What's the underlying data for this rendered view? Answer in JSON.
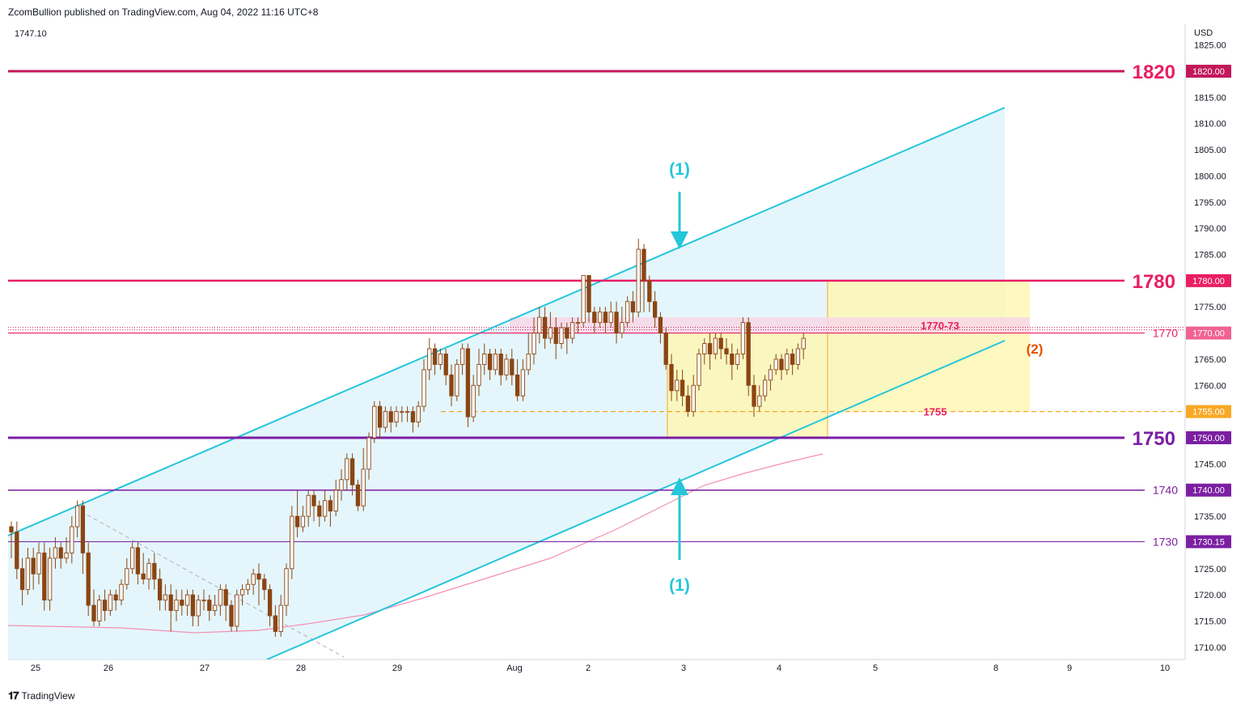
{
  "header": {
    "text": "ZcomBullion published on TradingView.com, Aug 04, 2022 11:16 UTC+8"
  },
  "footer": {
    "brand": "TradingView"
  },
  "colors": {
    "magenta": "#c2185b",
    "pink": "#e91e63",
    "purple": "#7b1fa2",
    "cyan": "#26c6da",
    "orange": "#e65100",
    "candle": "#8b4513",
    "channel_fill": "#dff4fb",
    "zone_yellow": "#fff6b0",
    "zone_pink": "#f8d7e6"
  },
  "chart_data": {
    "type": "candlestick",
    "symbol_value_label": "1747.10",
    "currency": "USD",
    "y_ticks": [
      1710,
      1715,
      1720,
      1725,
      1730,
      1735,
      1740,
      1745,
      1750,
      1755,
      1760,
      1765,
      1770,
      1775,
      1780,
      1785,
      1790,
      1795,
      1800,
      1805,
      1810,
      1815,
      1820,
      1825
    ],
    "y_tick_labels": [
      "1710.00",
      "1715.00",
      "1720.00",
      "1725.00",
      "1730.00",
      "1735.00",
      "1740.00",
      "1745.00",
      "1750.00",
      "1755.00",
      "1760.00",
      "1765.00",
      "1770.00",
      "1775.00",
      "1780.00",
      "1785.00",
      "1790.00",
      "1795.00",
      "1800.00",
      "1805.00",
      "1810.00",
      "1815.00",
      "1820.00",
      "1825.00"
    ],
    "y_range": [
      1707,
      1831
    ],
    "x_ticks": [
      "25",
      "26",
      "27",
      "28",
      "29",
      "Aug",
      "2",
      "3",
      "4",
      "5",
      "8",
      "9",
      "10"
    ],
    "levels": [
      {
        "value": 1820,
        "big_label": "1820",
        "badge": "1820.00",
        "color": "#c2185b",
        "text_color": "#e91e63",
        "width": 3,
        "size": "big"
      },
      {
        "value": 1780,
        "big_label": "1780",
        "badge": "1780.00",
        "color": "#e91e63",
        "text_color": "#e91e63",
        "width": 2.5,
        "size": "big"
      },
      {
        "value": 1770,
        "big_label": "1770",
        "badge": "1770.00",
        "color": "#e91e63",
        "text_color": "#e91e63",
        "width": 1.2,
        "size": "mid"
      },
      {
        "value": 1750,
        "big_label": "1750",
        "badge": "1750.00",
        "color": "#7b1fa2",
        "text_color": "#7b1fa2",
        "width": 3,
        "size": "big"
      },
      {
        "value": 1740,
        "big_label": "1740",
        "badge": "1740.00",
        "color": "#7b1fa2",
        "text_color": "#7b1fa2",
        "width": 1.5,
        "size": "mid"
      },
      {
        "value": 1730.15,
        "big_label": "1730",
        "badge": "1730.15",
        "color": "#7b1fa2",
        "text_color": "#7b1fa2",
        "width": 1,
        "size": "mid"
      }
    ],
    "level_1755": {
      "value": 1755,
      "label": "1755",
      "badge": "1755.00"
    },
    "zone_label": "1770-73",
    "annotation_top": "(1)",
    "annotation_bottom": "(1)",
    "annotation_2": "(2)",
    "candles": [
      [
        1733,
        1732,
        1727,
        1734
      ],
      [
        1732,
        1725,
        1723,
        1734
      ],
      [
        1725,
        1721,
        1718,
        1727
      ],
      [
        1721,
        1727,
        1720,
        1729
      ],
      [
        1727,
        1724,
        1721,
        1729
      ],
      [
        1724,
        1728,
        1722,
        1730
      ],
      [
        1728,
        1719,
        1717,
        1730
      ],
      [
        1719,
        1727,
        1717,
        1729
      ],
      [
        1727,
        1729,
        1725,
        1731
      ],
      [
        1729,
        1727,
        1725,
        1730
      ],
      [
        1727,
        1728,
        1726,
        1731
      ],
      [
        1728,
        1733,
        1726,
        1735
      ],
      [
        1733,
        1737,
        1731,
        1738
      ],
      [
        1737,
        1728,
        1724,
        1738
      ],
      [
        1728,
        1718,
        1716,
        1730
      ],
      [
        1718,
        1715,
        1714,
        1721
      ],
      [
        1715,
        1719,
        1714,
        1720
      ],
      [
        1719,
        1717,
        1715,
        1721
      ],
      [
        1717,
        1720,
        1716,
        1721
      ],
      [
        1720,
        1719,
        1717,
        1721
      ],
      [
        1719,
        1722,
        1718,
        1723
      ],
      [
        1722,
        1725,
        1721,
        1727
      ],
      [
        1725,
        1729,
        1724,
        1730
      ],
      [
        1729,
        1724,
        1722,
        1730
      ],
      [
        1724,
        1723,
        1722,
        1728
      ],
      [
        1723,
        1726,
        1721,
        1727
      ],
      [
        1726,
        1723,
        1721,
        1728
      ],
      [
        1723,
        1719,
        1717,
        1725
      ],
      [
        1719,
        1720,
        1717,
        1722
      ],
      [
        1720,
        1717,
        1713,
        1722
      ],
      [
        1717,
        1719,
        1715,
        1721
      ],
      [
        1719,
        1718,
        1716,
        1721
      ],
      [
        1718,
        1720,
        1716,
        1721
      ],
      [
        1720,
        1716,
        1714,
        1721
      ],
      [
        1716,
        1719,
        1714,
        1720
      ],
      [
        1719,
        1719,
        1717,
        1721
      ],
      [
        1719,
        1717,
        1715,
        1720
      ],
      [
        1717,
        1718,
        1716,
        1720
      ],
      [
        1718,
        1721,
        1716,
        1722
      ],
      [
        1721,
        1718,
        1715,
        1722
      ],
      [
        1718,
        1714,
        1713,
        1719
      ],
      [
        1714,
        1720,
        1713,
        1721
      ],
      [
        1720,
        1721,
        1718,
        1722
      ],
      [
        1721,
        1722,
        1720,
        1723
      ],
      [
        1722,
        1724,
        1720,
        1725
      ],
      [
        1724,
        1723,
        1718,
        1726
      ],
      [
        1723,
        1721,
        1719,
        1724
      ],
      [
        1721,
        1716,
        1714,
        1722
      ],
      [
        1716,
        1713,
        1712,
        1718
      ],
      [
        1713,
        1718,
        1712,
        1720
      ],
      [
        1718,
        1725,
        1716,
        1726
      ],
      [
        1725,
        1735,
        1723,
        1737
      ],
      [
        1735,
        1733,
        1731,
        1740
      ],
      [
        1733,
        1735,
        1732,
        1737
      ],
      [
        1735,
        1739,
        1733,
        1740
      ],
      [
        1739,
        1737,
        1734,
        1740
      ],
      [
        1737,
        1735,
        1733,
        1738
      ],
      [
        1735,
        1738,
        1734,
        1740
      ],
      [
        1738,
        1736,
        1733,
        1739
      ],
      [
        1736,
        1740,
        1735,
        1742
      ],
      [
        1740,
        1742,
        1738,
        1744
      ],
      [
        1742,
        1746,
        1740,
        1747
      ],
      [
        1746,
        1741,
        1739,
        1747
      ],
      [
        1741,
        1737,
        1736,
        1742
      ],
      [
        1737,
        1744,
        1736,
        1748
      ],
      [
        1744,
        1750,
        1742,
        1751
      ],
      [
        1750,
        1756,
        1749,
        1757
      ],
      [
        1756,
        1752,
        1750,
        1757
      ],
      [
        1752,
        1755,
        1751,
        1756
      ],
      [
        1755,
        1753,
        1751,
        1756
      ],
      [
        1753,
        1755,
        1752,
        1756
      ],
      [
        1755,
        1755,
        1753,
        1756
      ],
      [
        1755,
        1755,
        1753,
        1756
      ],
      [
        1755,
        1753,
        1751,
        1756
      ],
      [
        1753,
        1756,
        1752,
        1757
      ],
      [
        1756,
        1763,
        1755,
        1765
      ],
      [
        1763,
        1767,
        1761,
        1769
      ],
      [
        1767,
        1764,
        1762,
        1768
      ],
      [
        1764,
        1766,
        1763,
        1767
      ],
      [
        1766,
        1762,
        1760,
        1767
      ],
      [
        1762,
        1758,
        1756,
        1764
      ],
      [
        1758,
        1764,
        1757,
        1765
      ],
      [
        1764,
        1767,
        1762,
        1768
      ],
      [
        1767,
        1754,
        1752,
        1768
      ],
      [
        1754,
        1760,
        1753,
        1762
      ],
      [
        1760,
        1764,
        1758,
        1767
      ],
      [
        1764,
        1766,
        1762,
        1768
      ],
      [
        1766,
        1763,
        1761,
        1767
      ],
      [
        1763,
        1766,
        1762,
        1767
      ],
      [
        1766,
        1762,
        1760,
        1767
      ],
      [
        1762,
        1765,
        1761,
        1766
      ],
      [
        1765,
        1762,
        1760,
        1767
      ],
      [
        1762,
        1758,
        1757,
        1765
      ],
      [
        1758,
        1763,
        1757,
        1765
      ],
      [
        1763,
        1766,
        1762,
        1770
      ],
      [
        1766,
        1770,
        1764,
        1773
      ],
      [
        1770,
        1773,
        1768,
        1775
      ],
      [
        1773,
        1769,
        1767,
        1775
      ],
      [
        1769,
        1771,
        1768,
        1774
      ],
      [
        1771,
        1768,
        1765,
        1773
      ],
      [
        1768,
        1771,
        1767,
        1772
      ],
      [
        1771,
        1769,
        1766,
        1772
      ],
      [
        1769,
        1772,
        1768,
        1773
      ],
      [
        1772,
        1772,
        1770,
        1773
      ],
      [
        1772,
        1781,
        1771,
        1781
      ],
      [
        1781,
        1774,
        1772,
        1781
      ],
      [
        1774,
        1772,
        1770,
        1775
      ],
      [
        1772,
        1774,
        1771,
        1775
      ],
      [
        1774,
        1772,
        1770,
        1775
      ],
      [
        1772,
        1774,
        1771,
        1776
      ],
      [
        1774,
        1770,
        1768,
        1776
      ],
      [
        1770,
        1772,
        1769,
        1775
      ],
      [
        1772,
        1776,
        1771,
        1777
      ],
      [
        1776,
        1774,
        1772,
        1778
      ],
      [
        1774,
        1786,
        1773,
        1788
      ],
      [
        1786,
        1780,
        1774,
        1787
      ],
      [
        1780,
        1776,
        1774,
        1781
      ],
      [
        1776,
        1773,
        1771,
        1778
      ],
      [
        1773,
        1770,
        1768,
        1774
      ],
      [
        1770,
        1764,
        1763,
        1771
      ],
      [
        1764,
        1759,
        1757,
        1766
      ],
      [
        1759,
        1761,
        1757,
        1763
      ],
      [
        1761,
        1758,
        1756,
        1763
      ],
      [
        1758,
        1755,
        1754,
        1760
      ],
      [
        1755,
        1760,
        1754,
        1762
      ],
      [
        1760,
        1766,
        1759,
        1767
      ],
      [
        1766,
        1768,
        1764,
        1769
      ],
      [
        1768,
        1766,
        1763,
        1770
      ],
      [
        1766,
        1769,
        1765,
        1770
      ],
      [
        1769,
        1767,
        1765,
        1770
      ],
      [
        1767,
        1766,
        1764,
        1769
      ],
      [
        1766,
        1764,
        1761,
        1768
      ],
      [
        1764,
        1766,
        1763,
        1767
      ],
      [
        1766,
        1772,
        1765,
        1773
      ],
      [
        1772,
        1760,
        1758,
        1773
      ],
      [
        1760,
        1756,
        1754,
        1762
      ],
      [
        1756,
        1758,
        1755,
        1760
      ],
      [
        1758,
        1761,
        1757,
        1762
      ],
      [
        1761,
        1763,
        1759,
        1764
      ],
      [
        1763,
        1765,
        1762,
        1766
      ],
      [
        1765,
        1763,
        1761,
        1766
      ],
      [
        1763,
        1766,
        1762,
        1767
      ],
      [
        1766,
        1764,
        1762,
        1767
      ],
      [
        1764,
        1767,
        1763,
        1768
      ],
      [
        1767,
        1769,
        1765,
        1770
      ]
    ]
  }
}
